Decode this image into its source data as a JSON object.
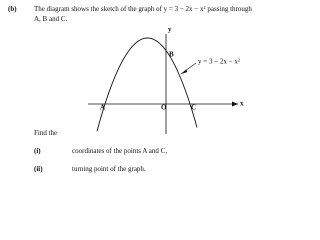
{
  "question": {
    "label": "(b)",
    "text_line1": "The diagram shows the sketch of the graph of y = 3 − 2x − x² passing through",
    "text_line2": "A, B and C."
  },
  "graph": {
    "point_a": "A",
    "point_b": "B",
    "point_c": "C",
    "origin": "O",
    "y_axis": "y",
    "x_axis": "x",
    "curve_label": "y = 3 − 2x − x²"
  },
  "tasks": {
    "intro": "Find the",
    "items": [
      {
        "label": "(i)",
        "text": "coordinates of the points A and C,"
      },
      {
        "label": "(ii)",
        "text": "turning point of the graph."
      }
    ]
  }
}
